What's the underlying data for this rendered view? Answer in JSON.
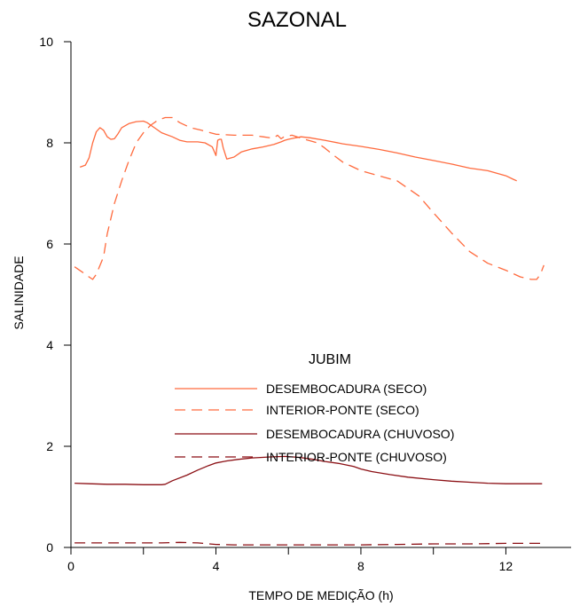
{
  "chart_data": {
    "type": "line",
    "title": "SAZONAL",
    "xlabel": "TEMPO DE MEDIÇÃO (h)",
    "ylabel": "SALINIDADE",
    "xlim": [
      0,
      13.8
    ],
    "ylim": [
      0,
      10
    ],
    "xticks": [
      0,
      4,
      8,
      12
    ],
    "xminor": [
      2,
      6,
      10
    ],
    "yticks": [
      0,
      2,
      4,
      6,
      8,
      10
    ],
    "grid": false,
    "legend": {
      "title": "JUBIM",
      "placement": "center",
      "entries": [
        "DESEMBOCADURA (SECO)",
        "INTERIOR-PONTE (SECO)",
        "DESEMBOCADURA (CHUVOSO)",
        "INTERIOR-PONTE (CHUVOSO)"
      ]
    },
    "series": [
      {
        "name": "DESEMBOCADURA (SECO)",
        "color": "#ff6a3d",
        "dash": "solid",
        "points": [
          [
            0.25,
            7.52
          ],
          [
            0.4,
            7.56
          ],
          [
            0.5,
            7.7
          ],
          [
            0.6,
            8.0
          ],
          [
            0.7,
            8.22
          ],
          [
            0.8,
            8.3
          ],
          [
            0.9,
            8.25
          ],
          [
            1.0,
            8.12
          ],
          [
            1.1,
            8.07
          ],
          [
            1.2,
            8.08
          ],
          [
            1.3,
            8.18
          ],
          [
            1.4,
            8.3
          ],
          [
            1.6,
            8.38
          ],
          [
            1.8,
            8.42
          ],
          [
            2.0,
            8.43
          ],
          [
            2.1,
            8.4
          ],
          [
            2.3,
            8.3
          ],
          [
            2.5,
            8.2
          ],
          [
            2.8,
            8.12
          ],
          [
            3.0,
            8.05
          ],
          [
            3.2,
            8.02
          ],
          [
            3.5,
            8.02
          ],
          [
            3.7,
            8.0
          ],
          [
            3.9,
            7.92
          ],
          [
            4.0,
            7.75
          ],
          [
            4.05,
            8.05
          ],
          [
            4.1,
            8.07
          ],
          [
            4.15,
            8.07
          ],
          [
            4.2,
            7.9
          ],
          [
            4.3,
            7.68
          ],
          [
            4.5,
            7.72
          ],
          [
            4.7,
            7.82
          ],
          [
            5.0,
            7.88
          ],
          [
            5.3,
            7.92
          ],
          [
            5.6,
            7.97
          ],
          [
            5.8,
            8.02
          ],
          [
            5.9,
            8.05
          ],
          [
            6.0,
            8.07
          ],
          [
            6.2,
            8.1
          ],
          [
            6.35,
            8.12
          ],
          [
            6.6,
            8.1
          ],
          [
            7.0,
            8.05
          ],
          [
            7.5,
            7.98
          ],
          [
            8.0,
            7.93
          ],
          [
            8.5,
            7.87
          ],
          [
            9.0,
            7.8
          ],
          [
            9.5,
            7.72
          ],
          [
            10.0,
            7.65
          ],
          [
            10.5,
            7.58
          ],
          [
            11.0,
            7.5
          ],
          [
            11.5,
            7.45
          ],
          [
            12.0,
            7.35
          ],
          [
            12.2,
            7.28
          ],
          [
            12.3,
            7.25
          ]
        ]
      },
      {
        "name": "INTERIOR-PONTE (SECO)",
        "color": "#ff6a3d",
        "dash": "dashed",
        "points": [
          [
            0.1,
            5.55
          ],
          [
            0.3,
            5.45
          ],
          [
            0.5,
            5.35
          ],
          [
            0.6,
            5.3
          ],
          [
            0.7,
            5.4
          ],
          [
            0.9,
            5.75
          ],
          [
            1.0,
            6.2
          ],
          [
            1.2,
            6.8
          ],
          [
            1.4,
            7.25
          ],
          [
            1.6,
            7.65
          ],
          [
            1.8,
            8.0
          ],
          [
            2.0,
            8.2
          ],
          [
            2.2,
            8.35
          ],
          [
            2.4,
            8.45
          ],
          [
            2.6,
            8.5
          ],
          [
            2.8,
            8.5
          ],
          [
            3.0,
            8.4
          ],
          [
            3.3,
            8.3
          ],
          [
            3.6,
            8.25
          ],
          [
            4.0,
            8.17
          ],
          [
            4.5,
            8.15
          ],
          [
            5.0,
            8.15
          ],
          [
            5.3,
            8.12
          ],
          [
            5.5,
            8.1
          ],
          [
            5.6,
            8.1
          ],
          [
            5.7,
            8.15
          ],
          [
            5.8,
            8.08
          ],
          [
            5.9,
            8.13
          ],
          [
            6.1,
            8.15
          ],
          [
            6.4,
            8.08
          ],
          [
            6.8,
            8.0
          ],
          [
            7.0,
            7.9
          ],
          [
            7.2,
            7.78
          ],
          [
            7.5,
            7.62
          ],
          [
            8.0,
            7.45
          ],
          [
            8.5,
            7.35
          ],
          [
            9.0,
            7.25
          ],
          [
            9.3,
            7.1
          ],
          [
            9.6,
            6.95
          ],
          [
            10.0,
            6.62
          ],
          [
            10.5,
            6.22
          ],
          [
            11.0,
            5.85
          ],
          [
            11.5,
            5.62
          ],
          [
            12.0,
            5.48
          ],
          [
            12.4,
            5.35
          ],
          [
            12.7,
            5.3
          ],
          [
            12.85,
            5.3
          ],
          [
            12.95,
            5.4
          ],
          [
            13.05,
            5.58
          ]
        ]
      },
      {
        "name": "DESEMBOCADURA (CHUVOSO)",
        "color": "#8b0f14",
        "dash": "solid",
        "points": [
          [
            0.1,
            1.27
          ],
          [
            0.5,
            1.26
          ],
          [
            1.0,
            1.25
          ],
          [
            1.5,
            1.25
          ],
          [
            2.0,
            1.24
          ],
          [
            2.5,
            1.24
          ],
          [
            2.6,
            1.25
          ],
          [
            2.8,
            1.32
          ],
          [
            3.2,
            1.43
          ],
          [
            3.5,
            1.53
          ],
          [
            3.8,
            1.62
          ],
          [
            4.0,
            1.67
          ],
          [
            4.3,
            1.71
          ],
          [
            4.6,
            1.74
          ],
          [
            5.0,
            1.77
          ],
          [
            5.5,
            1.79
          ],
          [
            5.9,
            1.8
          ],
          [
            6.3,
            1.78
          ],
          [
            6.7,
            1.74
          ],
          [
            7.0,
            1.7
          ],
          [
            7.4,
            1.66
          ],
          [
            7.8,
            1.6
          ],
          [
            8.0,
            1.55
          ],
          [
            8.3,
            1.5
          ],
          [
            8.8,
            1.44
          ],
          [
            9.3,
            1.39
          ],
          [
            10.0,
            1.34
          ],
          [
            10.5,
            1.31
          ],
          [
            11.0,
            1.29
          ],
          [
            11.5,
            1.27
          ],
          [
            12.0,
            1.26
          ],
          [
            12.5,
            1.26
          ],
          [
            12.8,
            1.26
          ],
          [
            13.0,
            1.26
          ]
        ]
      },
      {
        "name": "INTERIOR-PONTE (CHUVOSO)",
        "color": "#8b0f14",
        "dash": "dashed",
        "points": [
          [
            0.1,
            0.09
          ],
          [
            0.5,
            0.09
          ],
          [
            1.0,
            0.09
          ],
          [
            2.0,
            0.09
          ],
          [
            2.5,
            0.09
          ],
          [
            3.0,
            0.1
          ],
          [
            3.5,
            0.09
          ],
          [
            4.0,
            0.06
          ],
          [
            4.5,
            0.05
          ],
          [
            5.0,
            0.05
          ],
          [
            5.5,
            0.05
          ],
          [
            6.0,
            0.05
          ],
          [
            7.0,
            0.05
          ],
          [
            8.0,
            0.05
          ],
          [
            9.0,
            0.06
          ],
          [
            10.0,
            0.07
          ],
          [
            11.0,
            0.07
          ],
          [
            12.0,
            0.08
          ],
          [
            13.0,
            0.08
          ]
        ]
      }
    ]
  }
}
